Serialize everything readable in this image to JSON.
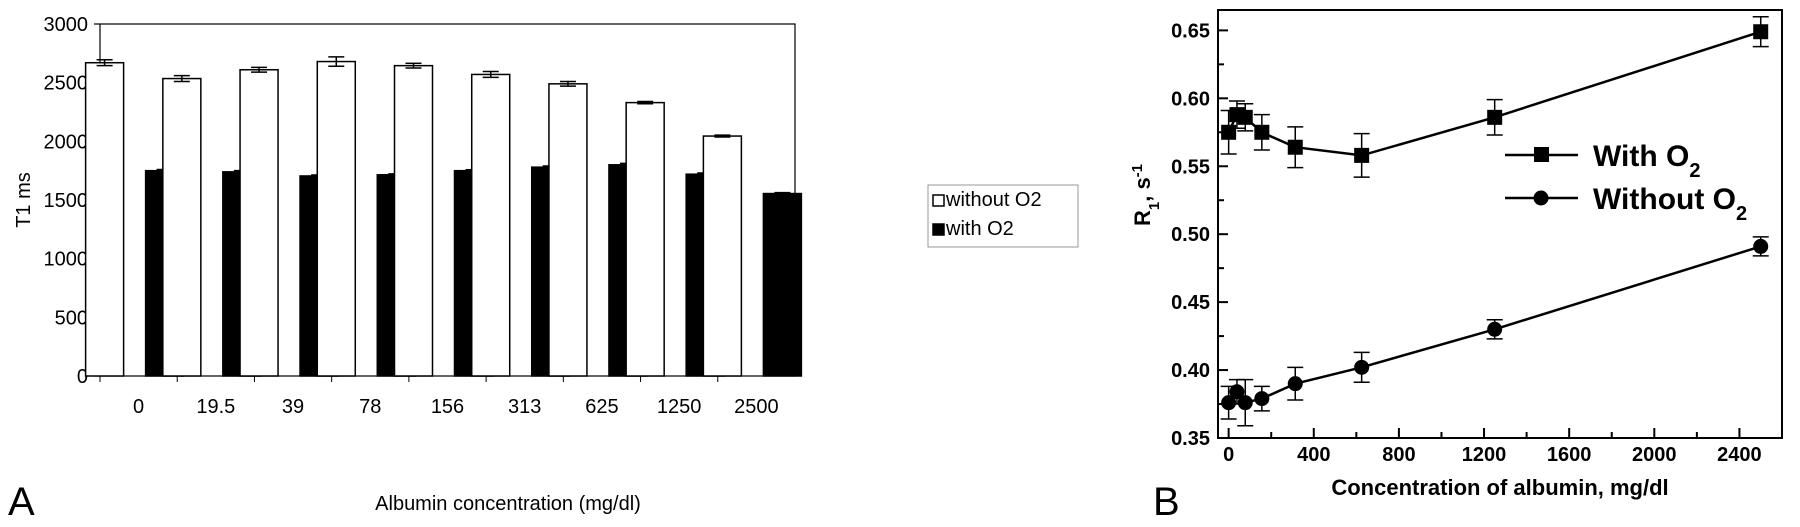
{
  "chart_data": [
    {
      "panel_label": "A",
      "type": "bar",
      "xlabel": "Albumin concentration (mg/dl)",
      "ylabel": "T1 ms",
      "ylim": [
        0,
        3000
      ],
      "yticks": [
        0,
        500,
        1000,
        1500,
        2000,
        2500,
        3000
      ],
      "categories": [
        "0",
        "19.5",
        "39",
        "78",
        "156",
        "313",
        "625",
        "1250",
        "2500"
      ],
      "grid": false,
      "legend_position": "right",
      "error_bars": true,
      "series": [
        {
          "name": "without O2",
          "fill": "#ffffff",
          "values": [
            2670,
            2535,
            2610,
            2680,
            2645,
            2570,
            2490,
            2330,
            2045
          ],
          "errors": [
            25,
            25,
            20,
            40,
            20,
            25,
            20,
            10,
            8
          ]
        },
        {
          "name": "with O2",
          "fill": "#000000",
          "values": [
            1750,
            1740,
            1705,
            1715,
            1750,
            1780,
            1800,
            1720,
            1555
          ],
          "errors": [
            10,
            10,
            8,
            8,
            8,
            10,
            12,
            10,
            8
          ]
        }
      ]
    },
    {
      "panel_label": "B",
      "type": "line",
      "xlabel": "Concentration of albumin, mg/dl",
      "ylabel": "R",
      "ylabel_sub": "1",
      "ylabel_tail": ", s",
      "ylabel_sup": "-1",
      "xlim": [
        -50,
        2600
      ],
      "ylim": [
        0.35,
        0.665
      ],
      "xticks": [
        0,
        400,
        800,
        1200,
        1600,
        2000,
        2400
      ],
      "yticks": [
        0.35,
        0.4,
        0.45,
        0.5,
        0.55,
        0.6,
        0.65
      ],
      "grid": false,
      "legend_position": "center-right",
      "error_bars": true,
      "series": [
        {
          "name": "With O",
          "name_sub": "2",
          "marker": "square",
          "x": [
            0,
            39,
            78,
            156,
            313,
            625,
            1250,
            2500
          ],
          "y": [
            0.575,
            0.588,
            0.586,
            0.575,
            0.564,
            0.558,
            0.586,
            0.649
          ],
          "errors": [
            0.016,
            0.01,
            0.01,
            0.013,
            0.015,
            0.016,
            0.013,
            0.011
          ]
        },
        {
          "name": "Without O",
          "name_sub": "2",
          "marker": "circle",
          "x": [
            0,
            39,
            78,
            156,
            313,
            625,
            1250,
            2500
          ],
          "y": [
            0.376,
            0.384,
            0.376,
            0.379,
            0.39,
            0.402,
            0.43,
            0.491
          ],
          "errors": [
            0.012,
            0.009,
            0.017,
            0.009,
            0.012,
            0.011,
            0.007,
            0.007
          ]
        }
      ]
    }
  ]
}
